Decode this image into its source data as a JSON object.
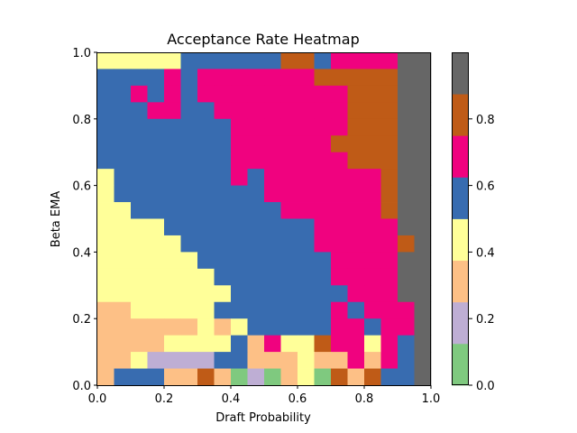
{
  "chart_data": {
    "type": "heatmap",
    "title": "Acceptance Rate Heatmap",
    "xlabel": "Draft Probability",
    "ylabel": "Beta EMA",
    "xlim": [
      0,
      1
    ],
    "ylim": [
      0,
      1
    ],
    "x_ticks": [
      "0.0",
      "0.2",
      "0.4",
      "0.6",
      "0.8",
      "1.0"
    ],
    "y_ticks": [
      "0.0",
      "0.2",
      "0.4",
      "0.6",
      "0.8",
      "1.0"
    ],
    "grid": false,
    "colorbar": {
      "placement": "right",
      "range": [
        0,
        1
      ],
      "ticks": [
        "0.0",
        "0.2",
        "0.4",
        "0.6",
        "0.8"
      ],
      "colors": [
        "#7fc97f",
        "#beaed4",
        "#fdc086",
        "#ffff99",
        "#386cb0",
        "#f0027f",
        "#bf5b17",
        "#666666"
      ]
    },
    "grid_size": [
      20,
      20
    ],
    "levels_rows_top_to_bottom": [
      "33333444444664555577",
      "44445455555556666677",
      "44545455555555566677",
      "44455445555555566677",
      "44444444555555566677",
      "44444444555555666677",
      "44444444555555566677",
      "34444444545555555677",
      "34444444445555555677",
      "33444444444555555677",
      "33334444444445555577",
      "33333444444445555567",
      "33333344444444555577",
      "33333334444444555577",
      "33333333444444455577",
      "22333334444444545557",
      "22222232344444554557",
      "22223333425336553547",
      "22311114422232252547",
      "24442262010230626447"
    ]
  }
}
